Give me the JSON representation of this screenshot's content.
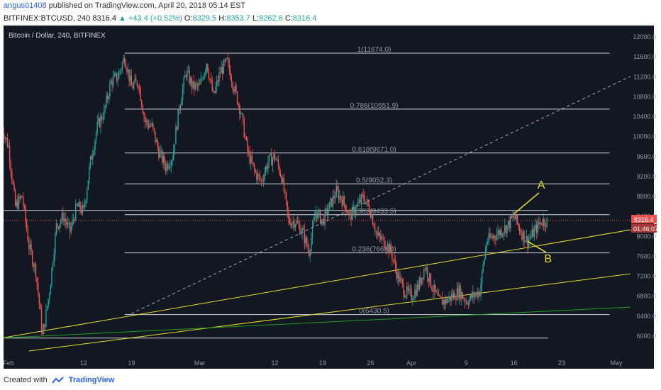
{
  "header": {
    "author": "angus01408",
    "published": "published on TradingView.com, April 20, 2018 05:14 EST",
    "symbol": "BITFINEX:BTCUSD, 240",
    "last": "8316.4",
    "change": "▲ +43.4 (+0.52%)",
    "o_label": "O:",
    "o_val": "8329.5",
    "h_label": "H:",
    "h_val": "8353.7",
    "l_label": "L:",
    "l_val": "8262.6",
    "c_label": "C:",
    "c_val": "8316.4"
  },
  "footer": {
    "created": "Created with",
    "brand": "TradingView"
  },
  "colors": {
    "background": "#131722",
    "up": "#26a69a",
    "down": "#ef5350",
    "fib": "#d1d4dc",
    "trend_yellow": "#e3e02a",
    "trend_green": "#1e9e1e",
    "price_line": "#ef5350",
    "annotation": "#e3e02a"
  },
  "chart_data": {
    "type": "candlestick",
    "title": "Bitcoin / Dollar, 240, BITFINEX",
    "ylim": [
      5600,
      12200
    ],
    "y_ticks": [
      6000,
      6400,
      6800,
      7200,
      7600,
      8000,
      8400,
      8800,
      9200,
      9600,
      10000,
      10400,
      10800,
      11200,
      11600,
      12000
    ],
    "x_ticks": [
      {
        "label": "Feb",
        "day": 1
      },
      {
        "label": "12",
        "day": 12
      },
      {
        "label": "19",
        "day": 19
      },
      {
        "label": "Mar",
        "day": 29
      },
      {
        "label": "12",
        "day": 40
      },
      {
        "label": "19",
        "day": 47
      },
      {
        "label": "26",
        "day": 54
      },
      {
        "label": "Apr",
        "day": 60
      },
      {
        "label": "9",
        "day": 68
      },
      {
        "label": "16",
        "day": 75
      },
      {
        "label": "23",
        "day": 82
      },
      {
        "label": "May",
        "day": 90
      }
    ],
    "last_price": "8316.4",
    "countdown": "01:46:07",
    "price_path": [
      [
        0,
        10200
      ],
      [
        1,
        9800
      ],
      [
        2,
        8600
      ],
      [
        3,
        8800
      ],
      [
        4,
        7800
      ],
      [
        5,
        7300
      ],
      [
        6,
        6000
      ],
      [
        7,
        6900
      ],
      [
        8,
        8200
      ],
      [
        9,
        8400
      ],
      [
        10,
        8100
      ],
      [
        11,
        8600
      ],
      [
        12,
        8500
      ],
      [
        13,
        9500
      ],
      [
        14,
        10200
      ],
      [
        15,
        10500
      ],
      [
        16,
        11100
      ],
      [
        17,
        11200
      ],
      [
        18,
        11600
      ],
      [
        19,
        11000
      ],
      [
        20,
        11100
      ],
      [
        21,
        10300
      ],
      [
        22,
        10200
      ],
      [
        23,
        9700
      ],
      [
        24,
        9400
      ],
      [
        25,
        9600
      ],
      [
        26,
        10600
      ],
      [
        27,
        11300
      ],
      [
        28,
        11000
      ],
      [
        29,
        11000
      ],
      [
        30,
        11500
      ],
      [
        31,
        10800
      ],
      [
        32,
        11300
      ],
      [
        33,
        11500
      ],
      [
        34,
        11000
      ],
      [
        35,
        10500
      ],
      [
        36,
        9700
      ],
      [
        37,
        9300
      ],
      [
        38,
        9100
      ],
      [
        39,
        9500
      ],
      [
        40,
        9600
      ],
      [
        41,
        9200
      ],
      [
        42,
        8300
      ],
      [
        43,
        8300
      ],
      [
        44,
        8100
      ],
      [
        45,
        7700
      ],
      [
        46,
        8500
      ],
      [
        47,
        8300
      ],
      [
        48,
        8600
      ],
      [
        49,
        8900
      ],
      [
        50,
        8700
      ],
      [
        51,
        8400
      ],
      [
        52,
        8600
      ],
      [
        53,
        8800
      ],
      [
        54,
        8500
      ],
      [
        55,
        8000
      ],
      [
        56,
        7900
      ],
      [
        57,
        7700
      ],
      [
        58,
        7200
      ],
      [
        59,
        6900
      ],
      [
        60,
        6800
      ],
      [
        61,
        7000
      ],
      [
        62,
        7400
      ],
      [
        63,
        7000
      ],
      [
        64,
        6700
      ],
      [
        65,
        6700
      ],
      [
        66,
        6800
      ],
      [
        67,
        6900
      ],
      [
        68,
        6700
      ],
      [
        69,
        6800
      ],
      [
        70,
        6900
      ],
      [
        71,
        7900
      ],
      [
        72,
        8000
      ],
      [
        73,
        8100
      ],
      [
        74,
        8200
      ],
      [
        75,
        8400
      ],
      [
        76,
        8100
      ],
      [
        77,
        7900
      ],
      [
        78,
        8100
      ],
      [
        79,
        8300
      ],
      [
        80,
        8316
      ]
    ],
    "fib_levels": [
      {
        "label": "0(6430.5)",
        "value": 6430.5
      },
      {
        "label": "0.236(7668.0)",
        "value": 7668.0
      },
      {
        "label": "0.382(8433.5)",
        "value": 8433.5
      },
      {
        "label": "0.5(9052.3)",
        "value": 9052.3
      },
      {
        "label": "0.618(9671.0)",
        "value": 9671.0
      },
      {
        "label": "0.786(10551.9)",
        "value": 10551.9
      },
      {
        "label": "1(11674.0)",
        "value": 11674.0
      }
    ],
    "horizontal_lines": [
      5960,
      8520
    ],
    "trendlines": [
      {
        "style": "yellow",
        "from": [
          0,
          5960
        ],
        "to": [
          95,
          8200
        ]
      },
      {
        "style": "yellow",
        "from": [
          4,
          5700
        ],
        "to": [
          95,
          7300
        ]
      },
      {
        "style": "green",
        "from": [
          0,
          5960
        ],
        "to": [
          95,
          6600
        ]
      },
      {
        "style": "dashed",
        "from": [
          19,
          6450
        ],
        "to": [
          95,
          11400
        ]
      }
    ],
    "annotations": [
      {
        "text": "A",
        "at": [
          75,
          8450
        ],
        "label_at": [
          79,
          8960
        ]
      },
      {
        "text": "B",
        "at": [
          77,
          7900
        ],
        "label_at": [
          80,
          7480
        ]
      }
    ]
  }
}
